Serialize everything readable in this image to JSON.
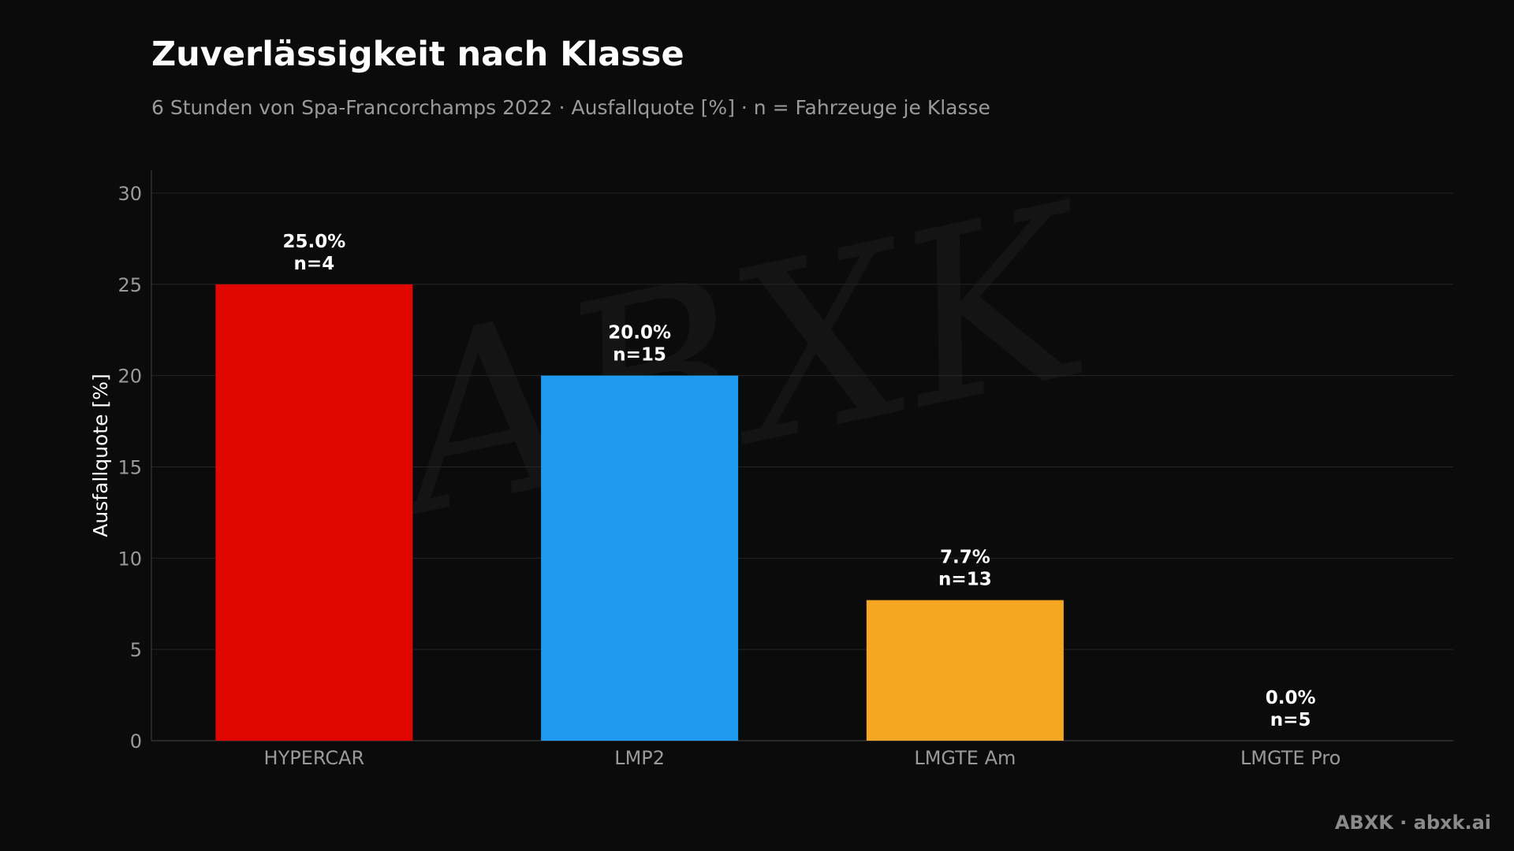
{
  "title": "Zuverlässigkeit nach Klasse",
  "subtitle": "6 Stunden von Spa-Francorchamps 2022 · Ausfallquote [%] · n = Fahrzeuge je Klasse",
  "footer": "ABXK · abxk.ai",
  "watermark": "ABXK",
  "colors": {
    "background": "#0b0b0b",
    "grid": "#262626",
    "text": "#ffffff",
    "muted": "#9a9a9a"
  },
  "chart_data": {
    "type": "bar",
    "title": "Zuverlässigkeit nach Klasse",
    "subtitle": "6 Stunden von Spa-Francorchamps 2022 · Ausfallquote [%] · n = Fahrzeuge je Klasse",
    "xlabel": "",
    "ylabel": "Ausfallquote [%]",
    "ylim": [
      0,
      30
    ],
    "yticks": [
      0,
      5,
      10,
      15,
      20,
      25,
      30
    ],
    "grid": true,
    "categories": [
      "HYPERCAR",
      "LMP2",
      "LMGTE Am",
      "LMGTE Pro"
    ],
    "values": [
      25.0,
      20.0,
      7.7,
      0.0
    ],
    "n": [
      4,
      15,
      13,
      5
    ],
    "value_labels": [
      "25.0%",
      "20.0%",
      "7.7%",
      "0.0%"
    ],
    "n_labels": [
      "n=4",
      "n=15",
      "n=13",
      "n=5"
    ],
    "colors": [
      "#e00700",
      "#1e9bf0",
      "#f5a623",
      "#8a8a8a"
    ]
  }
}
